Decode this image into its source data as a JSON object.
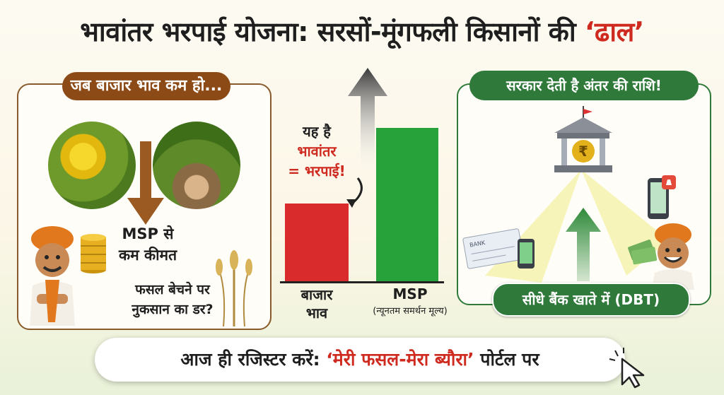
{
  "title": {
    "main": "भावांतर भरपाई योजना: सरसों-मूंगफली किसानों की ",
    "accent": "‘ढाल’"
  },
  "left_panel": {
    "header": "जब बाजार भाव कम हो...",
    "msp_line1": "MSP से",
    "msp_line2": "कम कीमत",
    "loss_line1": "फसल बेचने पर",
    "loss_line2": "नुकसान का डर?"
  },
  "center": {
    "diff_line1": "यह है",
    "diff_line2": "भावांतर",
    "diff_line3": "= भरपाई!",
    "bazaar_line1": "बाजार",
    "bazaar_line2": "भाव",
    "msp_label": "MSP",
    "msp_sub": "(न्यूनतम समर्थन मूल्य)"
  },
  "right_panel": {
    "header": "सरकार देती है अंतर की राशि!",
    "dbt": "सीधे बैंक खाते में (DBT)",
    "bank_symbol": "₹",
    "cheque_text": "BANK"
  },
  "cta": {
    "main": "आज ही रजिस्टर करें: ",
    "accent": "‘मेरी फसल-मेरा ब्यौरा’",
    "tail": " पोर्टल पर"
  },
  "colors": {
    "red": "#d92b2b",
    "green": "#27a23b",
    "brown": "#8b4a16",
    "dark_green": "#2f7a3a"
  },
  "icons": [
    "mustard-photo",
    "peanut-photo",
    "down-arrow-icon",
    "farmer-icon",
    "coins-icon",
    "wheat-icon",
    "up-arrow-icon",
    "bank-icon",
    "phone-icon",
    "cheque-icon",
    "cursor-icon"
  ]
}
